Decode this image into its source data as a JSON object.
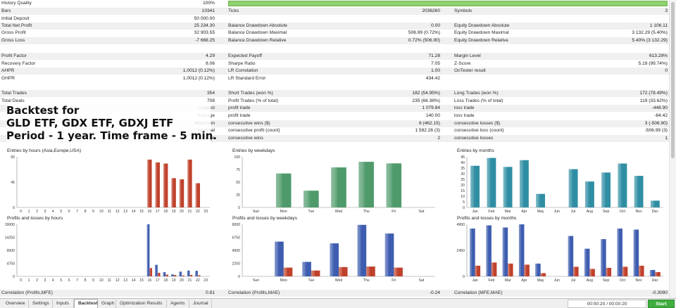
{
  "colors": {
    "red_bar": "#c0412b",
    "green_bar": "#4e9a6a",
    "teal_bar": "#2f8ea3",
    "blue_bar": "#3e5db0",
    "quality_bar": "#8fd16f",
    "start_button": "#3fae3f"
  },
  "stats": {
    "history_quality": {
      "label": "History Quality",
      "value": "100%",
      "fraction": 1.0
    },
    "bars": {
      "label": "Bars",
      "value": "10341"
    },
    "ticks": {
      "label": "Ticks",
      "value": "2036260"
    },
    "symbols": {
      "label": "Symbols",
      "value": "3"
    },
    "initial_deposit": {
      "label": "Initial Deposit",
      "value": "50 000.00"
    },
    "total_net_profit": {
      "label": "Total Net Profit",
      "value": "25 234.30"
    },
    "gross_profit": {
      "label": "Gross Profit",
      "value": "32 903.55"
    },
    "gross_loss": {
      "label": "Gross Loss",
      "value": "-7 668.25"
    },
    "bal_dd_abs": {
      "label": "Balance Drawdown Absolute",
      "value": "0.00"
    },
    "bal_dd_max": {
      "label": "Balance Drawdown Maximal",
      "value": "506.99 (0.72%)"
    },
    "bal_dd_rel": {
      "label": "Balance Drawdown Relative",
      "value": "0.72% (506.90)"
    },
    "eq_dd_abs": {
      "label": "Equity Drawdown Absolute",
      "value": "1 106.11"
    },
    "eq_dd_max": {
      "label": "Equity Drawdown Maximal",
      "value": "3 132.29 (5.40%)"
    },
    "eq_dd_rel": {
      "label": "Equity Drawdown Relative",
      "value": "5.40% (3 132.29)"
    },
    "profit_factor": {
      "label": "Profit Factor",
      "value": "4.29"
    },
    "recovery_factor": {
      "label": "Recovery Factor",
      "value": "8.06"
    },
    "ahpr": {
      "label": "AHPR",
      "value": "1.0012 (0.12%)"
    },
    "ghpr": {
      "label": "GHPR",
      "value": "1.0012 (0.12%)"
    },
    "expected_payoff": {
      "label": "Expected Payoff",
      "value": "71.28"
    },
    "sharpe_ratio": {
      "label": "Sharpe Ratio",
      "value": "7.05"
    },
    "lr_correlation": {
      "label": "LR Correlation",
      "value": "1.00"
    },
    "lr_std_error": {
      "label": "LR Standard Error",
      "value": "434.42"
    },
    "margin_level": {
      "label": "Margin Level",
      "value": "613.28%"
    },
    "z_score": {
      "label": "Z-Score",
      "value": "5.19 (99.74%)"
    },
    "ontester": {
      "label": "OnTester result",
      "value": "0"
    },
    "total_trades": {
      "label": "Total Trades",
      "value": "354"
    },
    "total_deals": {
      "label": "Total Deals",
      "value": "708"
    },
    "short_trades": {
      "label": "Short Trades (won %)",
      "value": "182 (54.95%)"
    },
    "profit_trades": {
      "label": "Profit Trades (% of total)",
      "value": "235 (66.38%)"
    },
    "long_trades": {
      "label": "Long Trades (won %)",
      "value": "172 (78.49%)"
    },
    "loss_trades": {
      "label": "Loss Trades (% of total)",
      "value": "119 (33.62%)"
    },
    "largest": {
      "label": "Largest",
      "profit_label": "profit trade",
      "profit": "1 079.84",
      "loss_label": "loss trade",
      "loss": "-448.90"
    },
    "average": {
      "label": "Average",
      "profit_label": "profit trade",
      "profit": "140.00",
      "loss_label": "loss trade",
      "loss": "-64.42"
    },
    "maximum": {
      "label": "Maximum",
      "profit_label": "consecutive wins ($)",
      "profit": "6 (462.15)",
      "loss_label": "consecutive losses ($)",
      "loss": "3 (-506.90)"
    },
    "maximal": {
      "label": "Maximal",
      "profit_label": "consecutive profit (count)",
      "profit": "1 582.26 (3)",
      "loss_label": "consecutive loss (count)",
      "loss": "-506.99 (3)"
    },
    "average_cons": {
      "label": "Average",
      "profit_label": "consecutive wins",
      "profit": "2",
      "loss_label": "consecutive losses",
      "loss": "1"
    },
    "corr_profits_mfe": {
      "label": "Correlation (Profits,MFE)",
      "value": "0.81"
    },
    "corr_profits_mae": {
      "label": "Correlation (Profits,MAE)",
      "value": "-0.24"
    },
    "corr_mfe_mae": {
      "label": "Correlation (MFE,MAE)",
      "value": "-0.3090"
    }
  },
  "headline": {
    "line1": "Backtest for",
    "line2": "GLD ETF, GDX ETF, GDXJ ETF",
    "line3": "Period - 1 year. Time frame - 5 min."
  },
  "chart_data": [
    {
      "type": "bar",
      "title": "Entries by hours (Asia,Europe,USA)",
      "categories": [
        "0",
        "1",
        "2",
        "3",
        "4",
        "5",
        "6",
        "7",
        "8",
        "9",
        "10",
        "11",
        "12",
        "13",
        "14",
        "15",
        "16",
        "17",
        "18",
        "19",
        "20",
        "21",
        "22",
        "23"
      ],
      "series": [
        {
          "values": [
            0,
            0,
            0,
            0,
            0,
            0,
            0,
            0,
            0,
            0,
            0,
            0,
            0,
            0,
            0,
            0,
            85,
            80,
            78,
            52,
            50,
            85,
            43,
            0
          ],
          "color": "#c0412b"
        }
      ],
      "yticks": [
        "0",
        "45",
        "90"
      ],
      "ylim": [
        0,
        90
      ]
    },
    {
      "type": "bar",
      "title": "Entries by weekdays",
      "categories": [
        "Sun",
        "Mon",
        "Tue",
        "Wed",
        "Thu",
        "Fri",
        "Sat"
      ],
      "series": [
        {
          "values": [
            0,
            67,
            33,
            79,
            90,
            87,
            0
          ],
          "color": "#4e9a6a"
        }
      ],
      "yticks": [
        "0",
        "25",
        "50",
        "75",
        "100"
      ],
      "ylim": [
        0,
        100
      ]
    },
    {
      "type": "bar",
      "title": "Entries by months",
      "categories": [
        "Jan",
        "Feb",
        "Mar",
        "Apr",
        "May",
        "Jun",
        "Jul",
        "Aug",
        "Sep",
        "Oct",
        "Nov",
        "Dec"
      ],
      "series": [
        {
          "values": [
            37,
            44,
            36,
            42,
            12,
            0,
            34,
            23,
            31,
            39,
            28,
            6
          ],
          "color": "#2f8ea3"
        }
      ],
      "yticks": [
        "0",
        "5",
        "10",
        "15",
        "20",
        "25",
        "30",
        "35",
        "40",
        "45"
      ],
      "ylim": [
        0,
        45
      ]
    },
    {
      "type": "bar",
      "title": "Profits and losses by hours",
      "categories": [
        "0",
        "1",
        "2",
        "3",
        "4",
        "5",
        "6",
        "7",
        "8",
        "9",
        "10",
        "11",
        "12",
        "13",
        "14",
        "15",
        "16",
        "17",
        "18",
        "19",
        "20",
        "21",
        "22",
        "23"
      ],
      "series": [
        {
          "name": "profits",
          "values": [
            0,
            0,
            0,
            0,
            0,
            0,
            0,
            0,
            0,
            0,
            0,
            0,
            0,
            0,
            0,
            0,
            19000,
            4200,
            1500,
            700,
            1700,
            2100,
            2000,
            0
          ],
          "color": "#3e5db0"
        },
        {
          "name": "losses",
          "values": [
            0,
            0,
            0,
            0,
            0,
            0,
            0,
            0,
            0,
            0,
            0,
            0,
            0,
            0,
            0,
            0,
            3000,
            1300,
            600,
            500,
            300,
            500,
            400,
            0
          ],
          "color": "#c0412b"
        }
      ],
      "yticks": [
        "0",
        "4750",
        "9500",
        "14250",
        "19000"
      ],
      "ylim": [
        0,
        19000
      ]
    },
    {
      "type": "bar",
      "title": "Profits and losses by weekdays",
      "categories": [
        "Sun",
        "Mon",
        "Tue",
        "Wed",
        "Thu",
        "Fri",
        "Sat"
      ],
      "series": [
        {
          "name": "profits",
          "values": [
            0,
            6000,
            2500,
            5700,
            8900,
            7400,
            0
          ],
          "color": "#3e5db0"
        },
        {
          "name": "losses",
          "values": [
            0,
            1500,
            1000,
            1600,
            1700,
            1500,
            0
          ],
          "color": "#c0412b"
        }
      ],
      "yticks": [
        "0",
        "2250",
        "4500",
        "6750",
        "9000"
      ],
      "ylim": [
        0,
        9000
      ]
    },
    {
      "type": "bar",
      "title": "Profits and losses by months",
      "categories": [
        "Jan",
        "Feb",
        "Mar",
        "Apr",
        "May",
        "Jun",
        "Jul",
        "Aug",
        "Sep",
        "Oct",
        "Nov",
        "Dec"
      ],
      "series": [
        {
          "name": "profits",
          "values": [
            4500,
            4800,
            4600,
            4900,
            1200,
            0,
            3800,
            2600,
            3500,
            4500,
            4400,
            600
          ],
          "color": "#3e5db0"
        },
        {
          "name": "losses",
          "values": [
            1000,
            1300,
            1200,
            1100,
            300,
            0,
            900,
            700,
            800,
            900,
            1000,
            400
          ],
          "color": "#c0412b"
        }
      ],
      "yticks": [
        "0",
        "2450",
        "4900"
      ],
      "ylim": [
        0,
        4900
      ]
    }
  ],
  "tabs": [
    "Overview",
    "Settings",
    "Inputs",
    "Backtest",
    "Graph",
    "Optimization Results",
    "Agents",
    "Journal"
  ],
  "active_tab": "Backtest",
  "timer": "00:00:20 / 00:00:20",
  "start_label": "Start"
}
